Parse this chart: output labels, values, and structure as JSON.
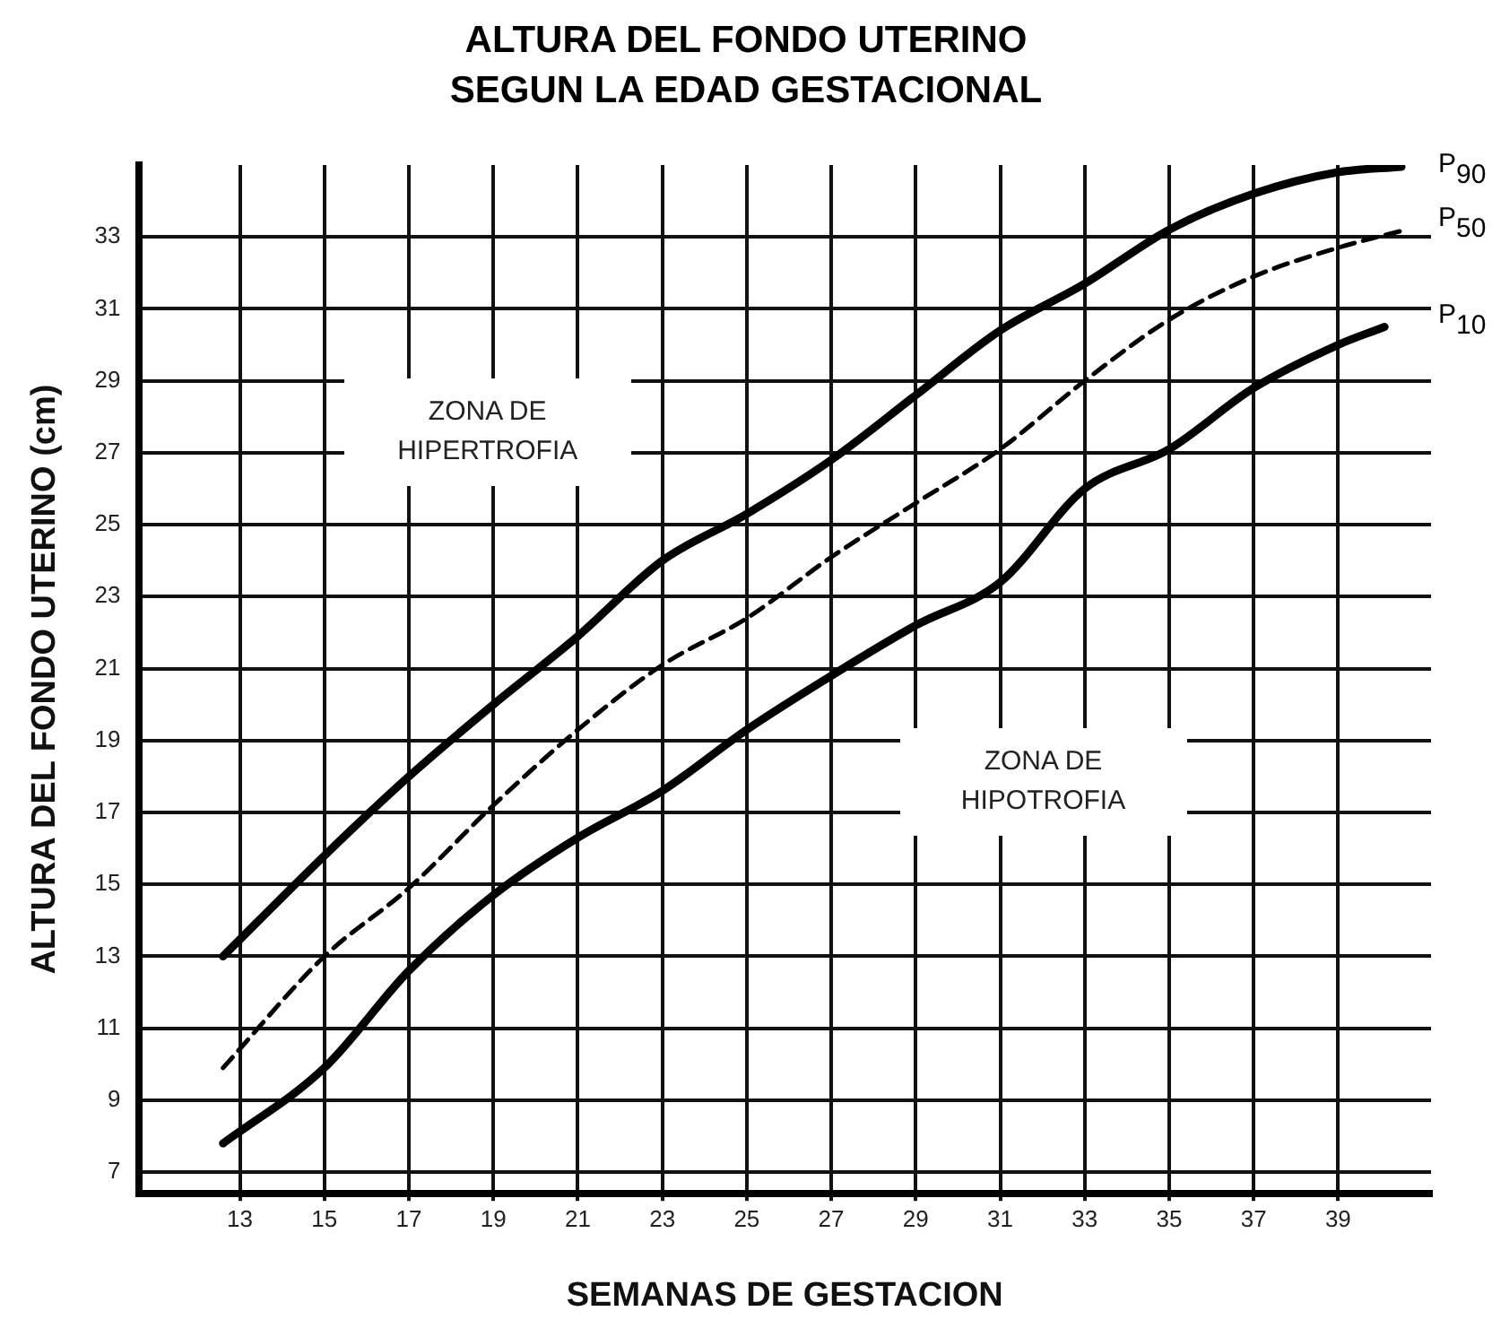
{
  "chart_data": {
    "type": "line",
    "title": "ALTURA DEL FONDO UTERINO SEGUN LA EDAD GESTACIONAL",
    "xlabel": "SEMANAS DE GESTACION",
    "ylabel": "ALTURA DEL FONDO UTERINO (cm)",
    "xlim": [
      10.6,
      41.2
    ],
    "xticks": [
      13,
      15,
      17,
      19,
      21,
      23,
      25,
      27,
      29,
      31,
      33,
      35,
      37,
      39
    ],
    "ylim": [
      6.4,
      35
    ],
    "yticks": [
      7,
      9,
      11,
      13,
      15,
      17,
      19,
      21,
      23,
      25,
      27,
      29,
      31,
      33
    ],
    "grid": true,
    "legend": false,
    "marker": "none",
    "series": [
      {
        "name": "P$_{90}$",
        "color": "#000000",
        "line_style": "solid",
        "x": [
          12.6,
          15,
          17,
          19,
          21,
          23,
          25,
          27,
          29,
          31,
          33,
          35,
          37,
          39,
          40.5
        ],
        "values": [
          13,
          15.8,
          18,
          20,
          21.9,
          24,
          25.3,
          26.8,
          28.6,
          30.4,
          31.7,
          33.2,
          34.2,
          34.8,
          34.95
        ]
      },
      {
        "name": "P$_{50}$",
        "color": "#000000",
        "line_style": "dashed",
        "x": [
          12.6,
          15,
          17,
          19,
          21,
          23,
          25,
          27,
          29,
          31,
          33,
          35,
          37,
          39,
          40.6
        ],
        "values": [
          9.9,
          13,
          14.9,
          17.2,
          19.3,
          21.1,
          22.4,
          24.1,
          25.6,
          27.1,
          29,
          30.7,
          31.9,
          32.7,
          33.2
        ]
      },
      {
        "name": "P$_{10}$",
        "color": "#000000",
        "line_style": "solid",
        "x": [
          12.6,
          15,
          17,
          19,
          21,
          23,
          25,
          27,
          29,
          31,
          33,
          35,
          37,
          39,
          40.1
        ],
        "values": [
          7.8,
          9.9,
          12.6,
          14.7,
          16.3,
          17.6,
          19.3,
          20.8,
          22.2,
          23.4,
          26,
          27.1,
          28.8,
          30,
          30.5
        ]
      }
    ],
    "annotations": [
      "ZONA DE HIPERTROFIA",
      "ZONA DE HIPOTROFIA"
    ]
  }
}
